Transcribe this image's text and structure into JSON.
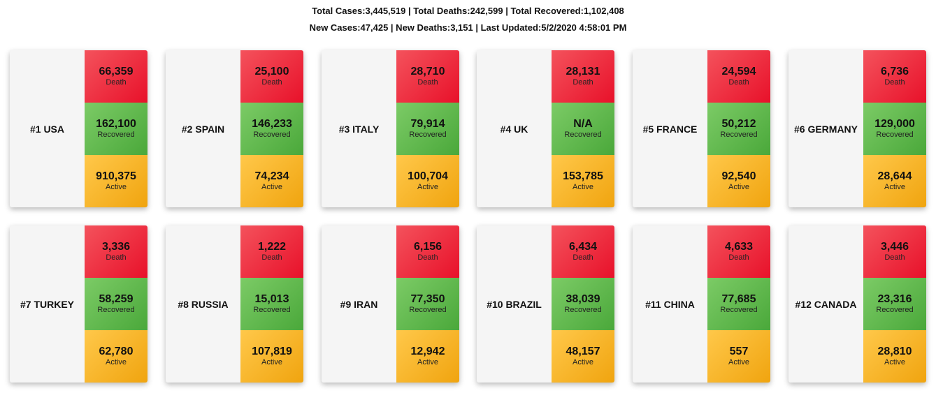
{
  "summary": {
    "line1": "Total Cases:3,445,519 | Total Deaths:242,599 | Total Recovered:1,102,408",
    "line2": "New Cases:47,425 | New Deaths:3,151 | Last Updated:5/2/2020 4:58:01 PM"
  },
  "labels": {
    "death": "Death",
    "recovered": "Recovered",
    "active": "Active"
  },
  "countries": [
    {
      "name": "#1 USA",
      "death": "66,359",
      "recovered": "162,100",
      "active": "910,375"
    },
    {
      "name": "#2 SPAIN",
      "death": "25,100",
      "recovered": "146,233",
      "active": "74,234"
    },
    {
      "name": "#3 ITALY",
      "death": "28,710",
      "recovered": "79,914",
      "active": "100,704"
    },
    {
      "name": "#4 UK",
      "death": "28,131",
      "recovered": "N/A",
      "active": "153,785"
    },
    {
      "name": "#5 FRANCE",
      "death": "24,594",
      "recovered": "50,212",
      "active": "92,540"
    },
    {
      "name": "#6 GERMANY",
      "death": "6,736",
      "recovered": "129,000",
      "active": "28,644"
    },
    {
      "name": "#7 TURKEY",
      "death": "3,336",
      "recovered": "58,259",
      "active": "62,780"
    },
    {
      "name": "#8 RUSSIA",
      "death": "1,222",
      "recovered": "15,013",
      "active": "107,819"
    },
    {
      "name": "#9 IRAN",
      "death": "6,156",
      "recovered": "77,350",
      "active": "12,942"
    },
    {
      "name": "#10 BRAZIL",
      "death": "6,434",
      "recovered": "38,039",
      "active": "48,157"
    },
    {
      "name": "#11 CHINA",
      "death": "4,633",
      "recovered": "77,685",
      "active": "557"
    },
    {
      "name": "#12 CANADA",
      "death": "3,446",
      "recovered": "23,316",
      "active": "28,810"
    }
  ]
}
